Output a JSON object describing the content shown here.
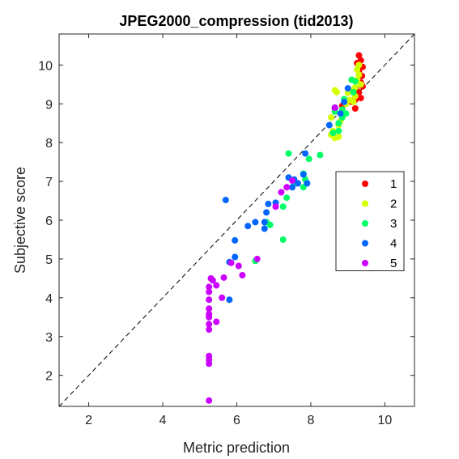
{
  "chart_data": {
    "type": "scatter",
    "title": "JPEG2000_compression (tid2013)",
    "xlabel": "Metric prediction",
    "ylabel": "Subjective score",
    "xlim": [
      1.2,
      10.8
    ],
    "ylim": [
      1.2,
      10.8
    ],
    "xticks": [
      2,
      4,
      6,
      8,
      10
    ],
    "yticks": [
      2,
      3,
      4,
      5,
      6,
      7,
      8,
      9,
      10
    ],
    "grid": false,
    "reference_line": "dashed diagonal y = x",
    "legend_position": "right",
    "series": [
      {
        "name": "1",
        "color": "#ff0000",
        "points": [
          [
            9.3,
            10.25
          ],
          [
            9.35,
            10.12
          ],
          [
            9.25,
            10.05
          ],
          [
            9.4,
            9.95
          ],
          [
            9.3,
            9.85
          ],
          [
            9.38,
            9.72
          ],
          [
            9.35,
            9.55
          ],
          [
            9.4,
            9.45
          ],
          [
            9.22,
            9.4
          ],
          [
            9.3,
            9.3
          ],
          [
            9.35,
            9.15
          ],
          [
            9.1,
            9.05
          ],
          [
            9.2,
            9.1
          ],
          [
            9.2,
            8.88
          ],
          [
            8.85,
            8.95
          ],
          [
            8.65,
            8.88
          ]
        ]
      },
      {
        "name": "2",
        "color": "#d4ff00",
        "points": [
          [
            9.3,
            10.0
          ],
          [
            9.25,
            9.88
          ],
          [
            9.3,
            9.75
          ],
          [
            9.25,
            9.62
          ],
          [
            9.35,
            9.5
          ],
          [
            9.2,
            9.42
          ],
          [
            9.1,
            9.35
          ],
          [
            9.0,
            9.28
          ],
          [
            9.2,
            9.2
          ],
          [
            9.05,
            9.1
          ],
          [
            9.15,
            9.05
          ],
          [
            8.65,
            9.35
          ],
          [
            8.7,
            9.3
          ],
          [
            8.95,
            9.0
          ],
          [
            8.55,
            8.65
          ],
          [
            8.8,
            8.55
          ],
          [
            8.75,
            8.45
          ],
          [
            8.6,
            8.3
          ],
          [
            8.55,
            8.2
          ],
          [
            8.75,
            8.15
          ],
          [
            8.65,
            8.12
          ]
        ]
      },
      {
        "name": "3",
        "color": "#00ff66",
        "points": [
          [
            9.1,
            9.62
          ],
          [
            9.2,
            9.58
          ],
          [
            9.15,
            9.3
          ],
          [
            8.9,
            9.12
          ],
          [
            8.85,
            8.85
          ],
          [
            8.65,
            8.8
          ],
          [
            8.95,
            8.75
          ],
          [
            8.85,
            8.65
          ],
          [
            8.75,
            8.5
          ],
          [
            8.75,
            8.3
          ],
          [
            8.6,
            8.25
          ],
          [
            7.4,
            7.72
          ],
          [
            8.25,
            7.68
          ],
          [
            7.95,
            7.58
          ],
          [
            7.8,
            7.2
          ],
          [
            7.85,
            7.05
          ],
          [
            7.55,
            6.95
          ],
          [
            7.8,
            6.85
          ],
          [
            7.35,
            6.58
          ],
          [
            7.25,
            6.35
          ],
          [
            6.8,
            5.95
          ],
          [
            6.9,
            5.88
          ],
          [
            7.25,
            5.5
          ],
          [
            6.5,
            4.95
          ]
        ]
      },
      {
        "name": "4",
        "color": "#0066ff",
        "points": [
          [
            9.0,
            9.4
          ],
          [
            8.9,
            9.05
          ],
          [
            8.65,
            8.9
          ],
          [
            8.8,
            8.75
          ],
          [
            8.5,
            8.45
          ],
          [
            7.85,
            7.72
          ],
          [
            7.4,
            7.1
          ],
          [
            7.55,
            7.05
          ],
          [
            7.8,
            7.18
          ],
          [
            7.65,
            6.95
          ],
          [
            7.9,
            6.95
          ],
          [
            7.5,
            6.85
          ],
          [
            7.05,
            6.45
          ],
          [
            6.85,
            6.42
          ],
          [
            6.8,
            6.2
          ],
          [
            5.7,
            6.52
          ],
          [
            6.75,
            5.95
          ],
          [
            6.5,
            5.95
          ],
          [
            6.3,
            5.85
          ],
          [
            6.75,
            5.78
          ],
          [
            5.95,
            5.48
          ],
          [
            5.95,
            5.05
          ],
          [
            5.8,
            4.92
          ],
          [
            5.8,
            3.95
          ]
        ]
      },
      {
        "name": "5",
        "color": "#cc00ff",
        "points": [
          [
            8.65,
            8.9
          ],
          [
            7.5,
            7.02
          ],
          [
            7.35,
            6.85
          ],
          [
            7.2,
            6.72
          ],
          [
            7.05,
            6.35
          ],
          [
            6.55,
            5.0
          ],
          [
            5.85,
            4.9
          ],
          [
            6.05,
            4.82
          ],
          [
            6.15,
            4.58
          ],
          [
            5.65,
            4.52
          ],
          [
            5.3,
            4.5
          ],
          [
            5.35,
            4.45
          ],
          [
            5.45,
            4.32
          ],
          [
            5.25,
            4.28
          ],
          [
            5.25,
            4.15
          ],
          [
            5.6,
            4.0
          ],
          [
            5.25,
            3.95
          ],
          [
            5.25,
            3.72
          ],
          [
            5.25,
            3.58
          ],
          [
            5.25,
            3.5
          ],
          [
            5.45,
            3.38
          ],
          [
            5.25,
            3.32
          ],
          [
            5.25,
            3.18
          ],
          [
            5.25,
            2.5
          ],
          [
            5.25,
            2.4
          ],
          [
            5.25,
            2.3
          ],
          [
            5.25,
            1.35
          ]
        ]
      }
    ]
  }
}
